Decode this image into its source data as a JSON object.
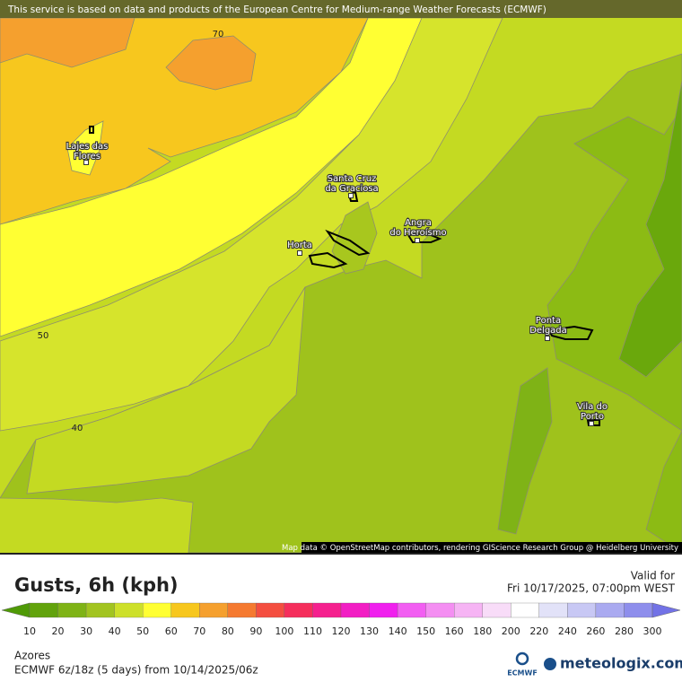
{
  "header": {
    "notice": "This service is based on data and products of the European Centre for Medium-range Weather Forecasts (ECMWF)"
  },
  "map": {
    "contour_labels": [
      70,
      50,
      40
    ],
    "places": [
      {
        "lines": [
          "Lajes das",
          "Flores"
        ]
      },
      {
        "lines": [
          "Santa Cruz",
          "da Graciosa"
        ]
      },
      {
        "lines": [
          "Angra",
          "do Heroísmo"
        ]
      },
      {
        "lines": [
          "Horta"
        ]
      },
      {
        "lines": [
          "Ponta",
          "Delgada"
        ]
      },
      {
        "lines": [
          "Vila do",
          "Porto"
        ]
      }
    ],
    "attribution": "Map data © OpenStreetMap contributors, rendering GIScience Research Group @ Heidelberg University"
  },
  "legend": {
    "title": "Gusts, 6h (kph)",
    "valid_label": "Valid for",
    "valid_time": "Fri 10/17/2025, 07:00pm WEST",
    "scale": [
      10,
      20,
      30,
      40,
      50,
      60,
      70,
      80,
      90,
      100,
      110,
      120,
      130,
      140,
      150,
      160,
      180,
      200,
      220,
      240,
      260,
      280,
      300
    ],
    "colors": [
      "#4f9a06",
      "#62a30c",
      "#7fb316",
      "#a2c420",
      "#cde02a",
      "#ffff33",
      "#f7c71e",
      "#f5a02e",
      "#f57a30",
      "#f44e40",
      "#f52e5c",
      "#f5208e",
      "#f21ec4",
      "#f020ee",
      "#f25ef2",
      "#f48ef2",
      "#f6b4f4",
      "#f8dcf8",
      "#ffffff",
      "#e2e2f8",
      "#c8c8f4",
      "#aaaaf0",
      "#8e8eec",
      "#7272e6"
    ]
  },
  "footer": {
    "region": "Azores",
    "model": "ECMWF 6z/18z (5 days) from 10/14/2025/06z",
    "ecmwf_logo": "ECMWF",
    "brand": "meteologix.com"
  }
}
